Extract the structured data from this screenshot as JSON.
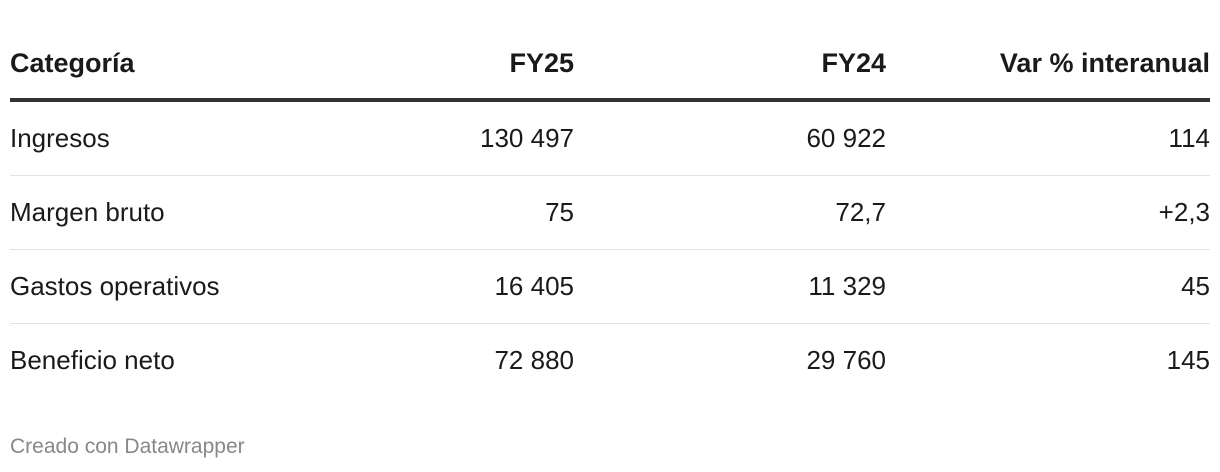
{
  "table": {
    "header": [
      "Categoría",
      "FY25",
      "FY24",
      "Var % interanual"
    ],
    "rows": [
      [
        "Ingresos",
        "130 497",
        "60 922",
        "114"
      ],
      [
        "Margen bruto",
        "75",
        "72,7",
        "+2,3"
      ],
      [
        "Gastos operativos",
        "16 405",
        "11 329",
        "45"
      ],
      [
        "Beneficio neto",
        "72 880",
        "29 760",
        "145"
      ]
    ]
  },
  "footer": "Creado con Datawrapper"
}
